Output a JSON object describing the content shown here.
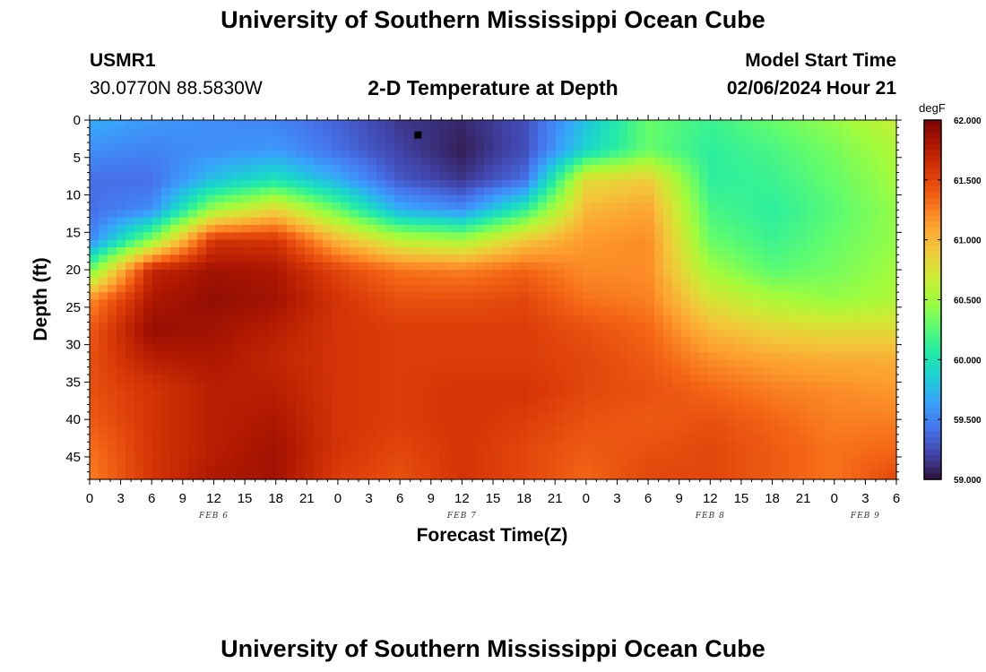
{
  "page": {
    "title_top": "University of Southern Mississippi Ocean Cube",
    "title_bottom": "University of Southern Mississippi Ocean Cube",
    "station_id": "USMR1",
    "station_coords": "30.0770N  88.5830W",
    "subtitle": "2-D Temperature at Depth",
    "model_start_label": "Model Start Time",
    "model_start_value": "02/06/2024 Hour 21"
  },
  "chart_data": {
    "type": "heatmap",
    "title": "2-D Temperature at Depth",
    "xlabel": "Forecast Time(Z)",
    "ylabel": "Depth (ft)",
    "x_range_hours": [
      0,
      78
    ],
    "x_hour_offset": 0,
    "x_tick_step_hours": 3,
    "x_tick_labels": [
      "0",
      "3",
      "6",
      "9",
      "12",
      "15",
      "18",
      "21",
      "0",
      "3",
      "6",
      "9",
      "12",
      "15",
      "18",
      "21",
      "0",
      "3",
      "6",
      "9",
      "12",
      "15",
      "18",
      "21",
      "0",
      "3",
      "6"
    ],
    "date_labels": [
      {
        "text": "FEB 6",
        "hour": 12
      },
      {
        "text": "FEB 7",
        "hour": 36
      },
      {
        "text": "FEB 8",
        "hour": 60
      },
      {
        "text": "FEB 9",
        "hour": 75
      }
    ],
    "y_range_ft": [
      0,
      48
    ],
    "y_ticks": [
      0,
      5,
      10,
      15,
      20,
      25,
      30,
      35,
      40,
      45
    ],
    "colorbar": {
      "unit": "degF",
      "min": 59.0,
      "max": 62.0,
      "labels": [
        "62.000",
        "61.500",
        "61.000",
        "60.500",
        "60.000",
        "59.500",
        "59.000"
      ],
      "colormap": [
        "#30123b",
        "#4145ab",
        "#4675ed",
        "#39a2fc",
        "#1bcfd4",
        "#24eca6",
        "#61fc6c",
        "#a4fc3b",
        "#d1e834",
        "#f3c63a",
        "#fe9b2d",
        "#f36315",
        "#d93807",
        "#b11901",
        "#7a0403"
      ]
    },
    "grid": {
      "hours": [
        0,
        6,
        12,
        18,
        24,
        30,
        36,
        42,
        48,
        54,
        60,
        66,
        72,
        78
      ],
      "depths_ft": [
        0,
        4,
        8,
        12,
        16,
        20,
        24,
        28,
        32,
        36,
        40,
        44,
        48
      ],
      "temps_degF": [
        [
          59.7,
          59.6,
          59.55,
          59.5,
          59.35,
          59.15,
          59.1,
          59.25,
          59.8,
          60.3,
          60.15,
          60.3,
          60.45,
          60.65
        ],
        [
          59.55,
          59.5,
          59.55,
          59.6,
          59.4,
          59.2,
          59.05,
          59.25,
          59.9,
          60.3,
          60.1,
          60.2,
          60.35,
          60.55
        ],
        [
          59.4,
          59.4,
          59.8,
          60.0,
          59.7,
          59.3,
          59.15,
          59.4,
          60.8,
          60.9,
          60.1,
          60.15,
          60.3,
          60.5
        ],
        [
          59.4,
          59.55,
          60.5,
          60.85,
          60.3,
          59.7,
          59.55,
          60.1,
          61.0,
          61.1,
          60.2,
          60.1,
          60.25,
          60.45
        ],
        [
          59.5,
          60.4,
          61.6,
          61.6,
          61.0,
          60.6,
          60.5,
          60.9,
          61.15,
          61.2,
          60.3,
          60.15,
          60.3,
          60.45
        ],
        [
          60.3,
          61.7,
          61.85,
          61.8,
          61.5,
          61.3,
          61.25,
          61.35,
          61.2,
          61.2,
          60.5,
          60.25,
          60.35,
          60.5
        ],
        [
          61.2,
          61.8,
          61.9,
          61.85,
          61.6,
          61.45,
          61.45,
          61.5,
          61.3,
          61.25,
          60.75,
          60.55,
          60.45,
          60.55
        ],
        [
          61.4,
          61.9,
          61.85,
          61.75,
          61.6,
          61.55,
          61.55,
          61.55,
          61.45,
          61.35,
          61.0,
          60.85,
          60.8,
          60.8
        ],
        [
          61.45,
          61.75,
          61.8,
          61.7,
          61.6,
          61.55,
          61.55,
          61.55,
          61.5,
          61.4,
          61.2,
          61.1,
          61.05,
          61.05
        ],
        [
          61.45,
          61.6,
          61.75,
          61.75,
          61.6,
          61.55,
          61.6,
          61.6,
          61.5,
          61.45,
          61.35,
          61.25,
          61.2,
          61.15
        ],
        [
          61.4,
          61.6,
          61.75,
          61.8,
          61.6,
          61.55,
          61.6,
          61.55,
          61.45,
          61.4,
          61.45,
          61.35,
          61.25,
          61.25
        ],
        [
          61.3,
          61.6,
          61.75,
          61.85,
          61.6,
          61.5,
          61.6,
          61.5,
          61.4,
          61.45,
          61.5,
          61.4,
          61.3,
          61.35
        ],
        [
          61.25,
          61.6,
          61.8,
          61.85,
          61.55,
          61.45,
          61.6,
          61.5,
          61.35,
          61.5,
          61.5,
          61.4,
          61.3,
          61.5
        ]
      ]
    },
    "marker": {
      "hour": 31.75,
      "depth_ft": 2
    }
  }
}
